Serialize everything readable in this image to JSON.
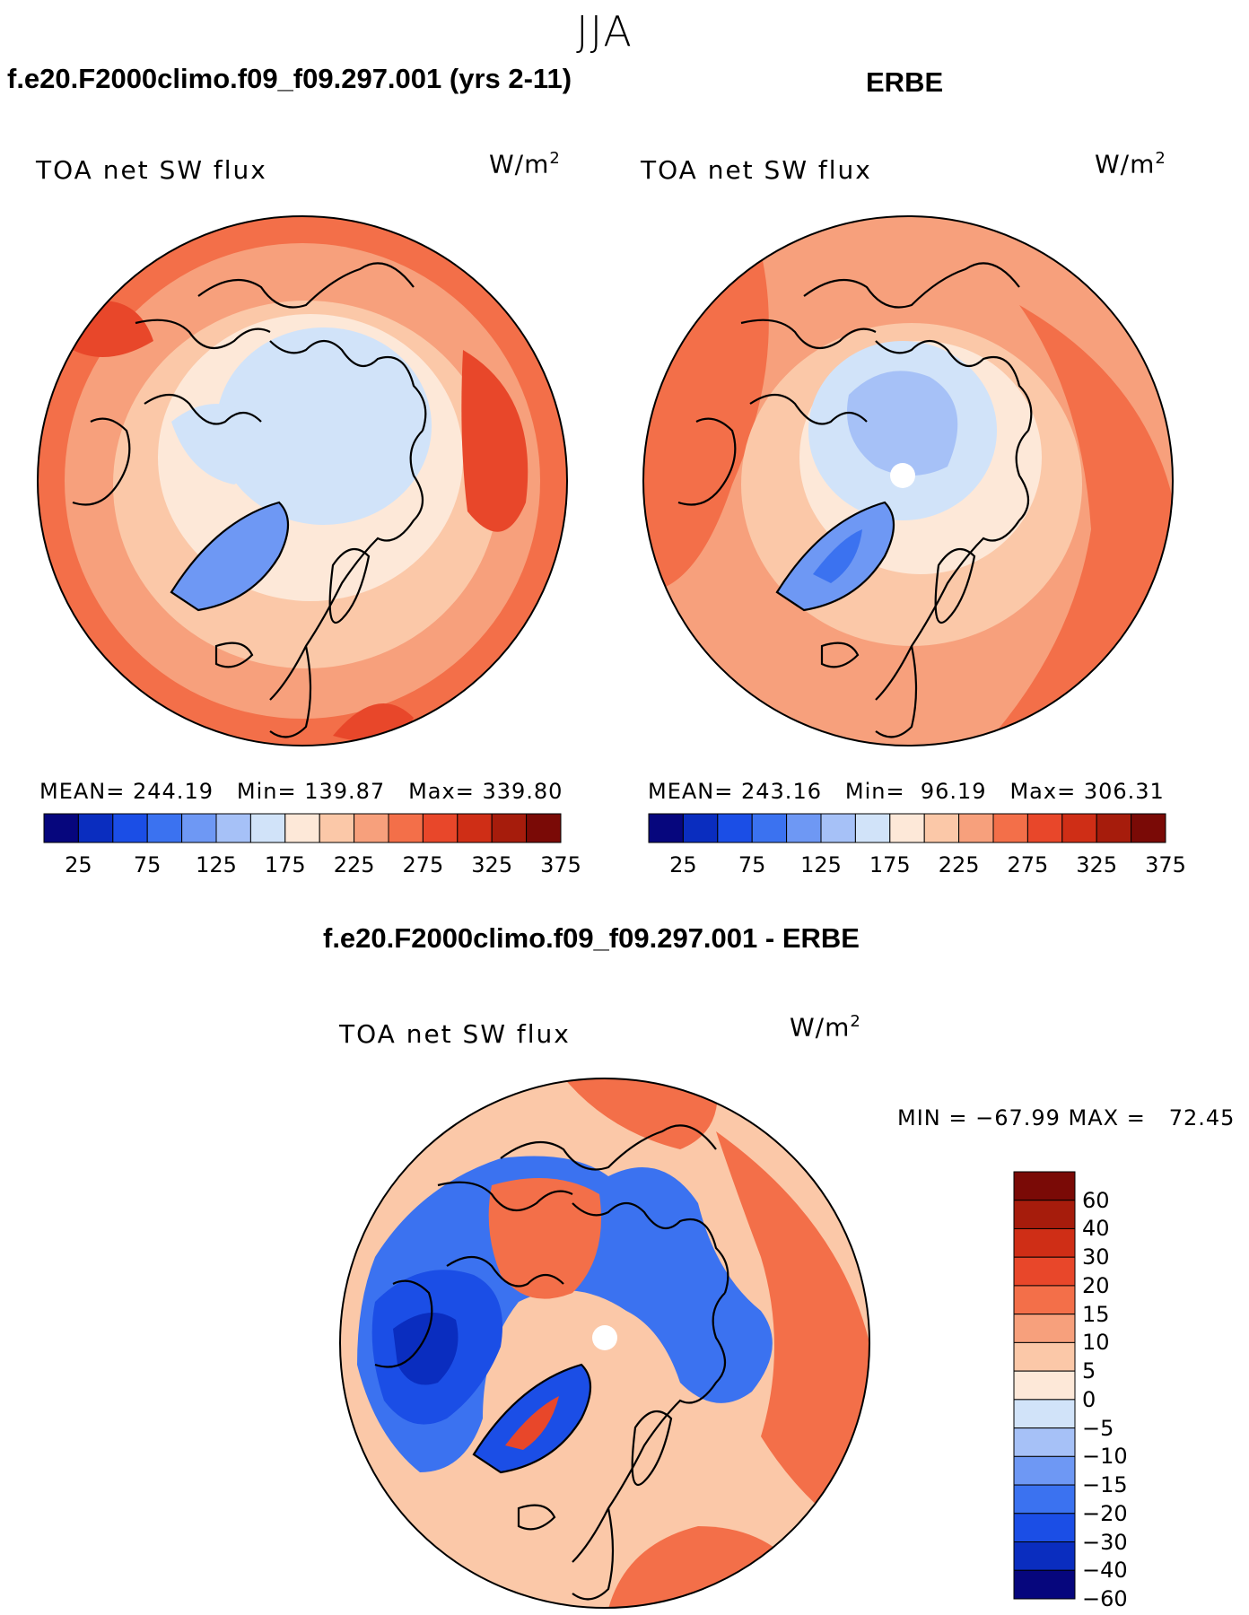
{
  "season": "JJA",
  "colors": {
    "abs_scale": [
      "#06067d",
      "#0a2dbf",
      "#1b4ee6",
      "#3b72f0",
      "#6e98f4",
      "#a6c1f7",
      "#d1e3f9",
      "#fde8d8",
      "#fbc8a8",
      "#f7a07c",
      "#f36f49",
      "#e8472a",
      "#cf2e16",
      "#a61c0c",
      "#7a0a06"
    ],
    "diff_scale": [
      "#06067d",
      "#0a2dbf",
      "#1b4ee6",
      "#3b72f0",
      "#6e98f4",
      "#a6c1f7",
      "#d1e3f9",
      "#fde8d8",
      "#fbc8a8",
      "#f7a07c",
      "#f36f49",
      "#e8472a",
      "#cf2e16",
      "#a61c0c",
      "#7a0a06"
    ]
  },
  "panels": [
    {
      "heading": "f.e20.F2000climo.f09_f09.297.001 (yrs 2-11)",
      "variable": "TOA net SW flux",
      "units_base": "W/m",
      "units_exp": "2",
      "mean_label": "MEAN=",
      "mean": "244.19",
      "min_label": "Min=",
      "min": "139.87",
      "max_label": "Max=",
      "max": "339.80",
      "colorbar_ticks": [
        "25",
        "75",
        "125",
        "175",
        "225",
        "275",
        "325",
        "375"
      ]
    },
    {
      "heading": "ERBE",
      "variable": "TOA net SW flux",
      "units_base": "W/m",
      "units_exp": "2",
      "mean_label": "MEAN=",
      "mean": "243.16",
      "min_label": "Min=",
      "min": "96.19",
      "max_label": "Max=",
      "max": "306.31",
      "colorbar_ticks": [
        "25",
        "75",
        "125",
        "175",
        "225",
        "275",
        "325",
        "375"
      ]
    }
  ],
  "diff_panel": {
    "heading": "f.e20.F2000climo.f09_f09.297.001 - ERBE",
    "variable": "TOA net SW flux",
    "units_base": "W/m",
    "units_exp": "2",
    "minmax": "MIN = −67.99 MAX =   72.45",
    "colorbar_ticks": [
      "60",
      "40",
      "30",
      "20",
      "15",
      "10",
      "5",
      "0",
      "−5",
      "−10",
      "−15",
      "−20",
      "−30",
      "−40",
      "−60"
    ]
  }
}
